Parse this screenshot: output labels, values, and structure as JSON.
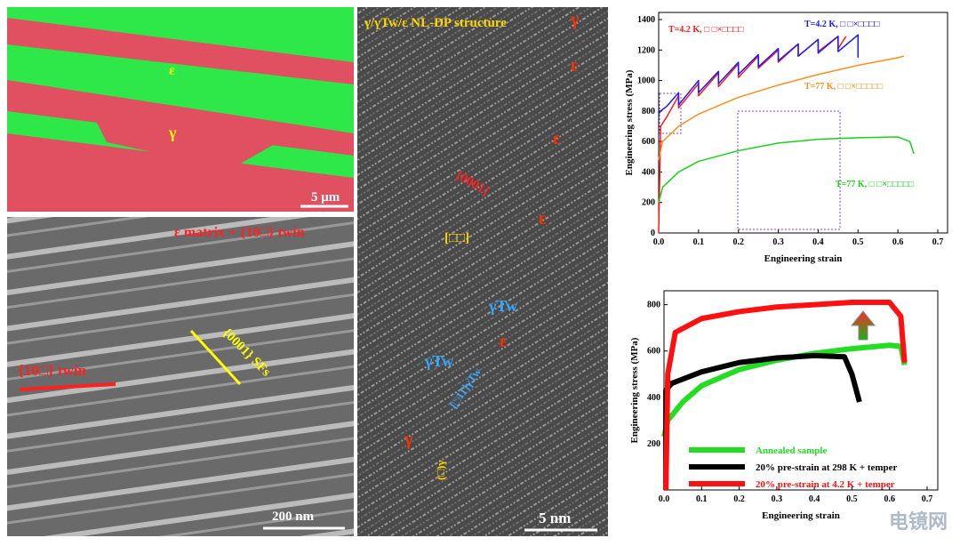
{
  "panels": {
    "ebsd": {
      "labels": [
        "ε",
        "γ"
      ],
      "scale_bar": "5 μm"
    },
    "tem": {
      "title": "ε matrix + {10□} twin",
      "sfs": "{0001} SFs",
      "twin": "{10□} twin",
      "scale_bar": "200 nm"
    },
    "hrtem": {
      "title": "γ/γTw/ε NL-DP structure",
      "gamma_top": "γ",
      "eps": [
        "ε",
        "ε",
        "ε",
        "ε"
      ],
      "plane1": "[0001]",
      "plane2": "[□□]",
      "gtw": [
        "γTw",
        "γTw"
      ],
      "dir1": "[□11]γTw",
      "dir2": "(□)γ",
      "gamma_bottom": "γ",
      "scale_bar": "5 nm"
    }
  },
  "chart_data": [
    {
      "type": "line",
      "xlabel": "Engineering strain",
      "ylabel": "Engineering stress (MPa)",
      "xlim": [
        0,
        0.7
      ],
      "xticks": [
        {
          "value": 0,
          "label": "0.0"
        },
        0.1,
        0.2,
        0.3,
        0.4,
        0.5,
        0.6,
        0.7
      ],
      "ylim": [
        0,
        1400
      ],
      "yticks": [
        0,
        200,
        400,
        600,
        800,
        1000,
        1200,
        1400
      ],
      "series": [
        {
          "name": "T=4.2 K, □ □×□□□□",
          "color": "#ff1a1a",
          "x": [
            0,
            0.005,
            0.02,
            0.05,
            0.05,
            0.1,
            0.1,
            0.15,
            0.15,
            0.2,
            0.2,
            0.25,
            0.25,
            0.3,
            0.3,
            0.35,
            0.35,
            0.4,
            0.4,
            0.45,
            0.45,
            0.47
          ],
          "values": [
            0,
            700,
            760,
            900,
            820,
            980,
            900,
            1050,
            960,
            1110,
            1020,
            1160,
            1080,
            1200,
            1120,
            1240,
            1160,
            1270,
            1190,
            1290,
            1210,
            1290
          ]
        },
        {
          "name": "T=4.2 K, □ □×□□□□",
          "color": "#1a1aff",
          "x": [
            0,
            0.005,
            0.02,
            0.05,
            0.05,
            0.1,
            0.1,
            0.15,
            0.15,
            0.2,
            0.2,
            0.25,
            0.25,
            0.3,
            0.3,
            0.35,
            0.35,
            0.4,
            0.4,
            0.45,
            0.45,
            0.5,
            0.5
          ],
          "values": [
            780,
            800,
            830,
            920,
            840,
            1000,
            920,
            1060,
            980,
            1120,
            1040,
            1170,
            1090,
            1210,
            1130,
            1240,
            1160,
            1270,
            1180,
            1290,
            1190,
            1300,
            1150
          ]
        },
        {
          "name": "T=77 K, □ □×□□□□□",
          "color": "#ff8c1a",
          "x": [
            0,
            0.01,
            0.05,
            0.1,
            0.2,
            0.3,
            0.4,
            0.5,
            0.6,
            0.615
          ],
          "values": [
            480,
            600,
            700,
            780,
            890,
            970,
            1040,
            1100,
            1150,
            1160
          ]
        },
        {
          "name": "T=77 K, □ □×□□□□□",
          "color": "#1ad11a",
          "x": [
            0,
            0.01,
            0.05,
            0.1,
            0.2,
            0.3,
            0.4,
            0.5,
            0.6,
            0.63,
            0.64
          ],
          "values": [
            200,
            300,
            400,
            470,
            540,
            590,
            615,
            625,
            630,
            600,
            520
          ]
        }
      ]
    },
    {
      "type": "line",
      "xlabel": "Engineering strain",
      "ylabel": "Engineering stress (MPa)",
      "legend": "lower right",
      "xlim": [
        0,
        0.7
      ],
      "xticks": [
        {
          "value": 0,
          "label": "0.0"
        },
        0.1,
        0.2,
        0.3,
        0.4,
        0.5,
        0.6,
        0.7
      ],
      "ylim": [
        0,
        860
      ],
      "yticks": [
        200,
        400,
        600,
        800
      ],
      "series": [
        {
          "name": "Annealed sample",
          "color": "#22dd22",
          "x": [
            0,
            0.01,
            0.05,
            0.1,
            0.2,
            0.3,
            0.4,
            0.5,
            0.6,
            0.63,
            0.64
          ],
          "values": [
            230,
            300,
            380,
            450,
            520,
            560,
            590,
            610,
            625,
            620,
            540
          ]
        },
        {
          "name": "20% pre-strain at 298 K + temper",
          "color": "#000000",
          "x": [
            0.005,
            0.005,
            0.02,
            0.1,
            0.2,
            0.3,
            0.4,
            0.48,
            0.5,
            0.52
          ],
          "values": [
            0,
            430,
            460,
            510,
            550,
            570,
            580,
            575,
            500,
            380
          ]
        },
        {
          "name": "20% pre-strain at 4.2 K + temper",
          "color": "#ff1010",
          "x": [
            0.005,
            0.01,
            0.03,
            0.1,
            0.2,
            0.3,
            0.4,
            0.5,
            0.6,
            0.63,
            0.64
          ],
          "values": [
            0,
            500,
            680,
            740,
            770,
            790,
            800,
            810,
            810,
            750,
            550
          ]
        }
      ]
    }
  ],
  "watermark": "电镜网"
}
